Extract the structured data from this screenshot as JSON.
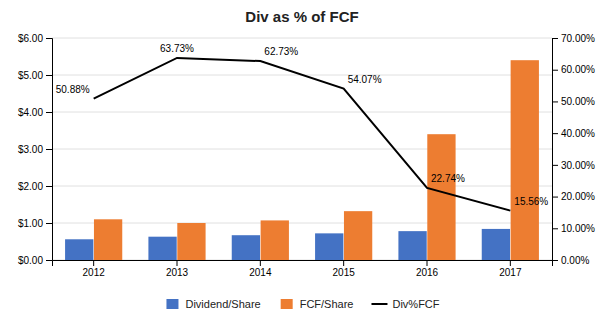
{
  "chart_data": {
    "type": "bar",
    "title": "Div as % of FCF",
    "categories": [
      "2012",
      "2013",
      "2014",
      "2015",
      "2016",
      "2017"
    ],
    "series": [
      {
        "name": "Dividend/Share",
        "color": "#4472C4",
        "values": [
          0.56,
          0.63,
          0.67,
          0.72,
          0.78,
          0.84
        ]
      },
      {
        "name": "FCF/Share",
        "color": "#ED7D31",
        "values": [
          1.1,
          1.0,
          1.07,
          1.32,
          3.4,
          5.4
        ]
      },
      {
        "name": "Div%FCF",
        "type": "line",
        "axis": "y2",
        "color": "#000000",
        "values": [
          0.5088,
          0.6373,
          0.6273,
          0.5407,
          0.2274,
          0.1556
        ],
        "data_labels": true,
        "value_labels": [
          "50.88%",
          "63.73%",
          "62.73%",
          "54.07%",
          "22.74%",
          "15.56%"
        ]
      }
    ],
    "ylim": [
      0.0,
      6.0
    ],
    "yticks": [
      {
        "value": 0.0,
        "label": "$0.00"
      },
      {
        "value": 1.0,
        "label": "$1.00"
      },
      {
        "value": 2.0,
        "label": "$2.00"
      },
      {
        "value": 3.0,
        "label": "$3.00"
      },
      {
        "value": 4.0,
        "label": "$4.00"
      },
      {
        "value": 5.0,
        "label": "$5.00"
      },
      {
        "value": 6.0,
        "label": "$6.00"
      }
    ],
    "y2lim": [
      0.0,
      0.7
    ],
    "y2ticks": [
      {
        "value": 0.0,
        "label": "0.00%"
      },
      {
        "value": 0.1,
        "label": "10.00%"
      },
      {
        "value": 0.2,
        "label": "20.00%"
      },
      {
        "value": 0.3,
        "label": "30.00%"
      },
      {
        "value": 0.4,
        "label": "40.00%"
      },
      {
        "value": 0.5,
        "label": "50.00%"
      },
      {
        "value": 0.6,
        "label": "60.00%"
      },
      {
        "value": 0.7,
        "label": "70.00%"
      }
    ],
    "grid": true,
    "legend": "bottom"
  }
}
